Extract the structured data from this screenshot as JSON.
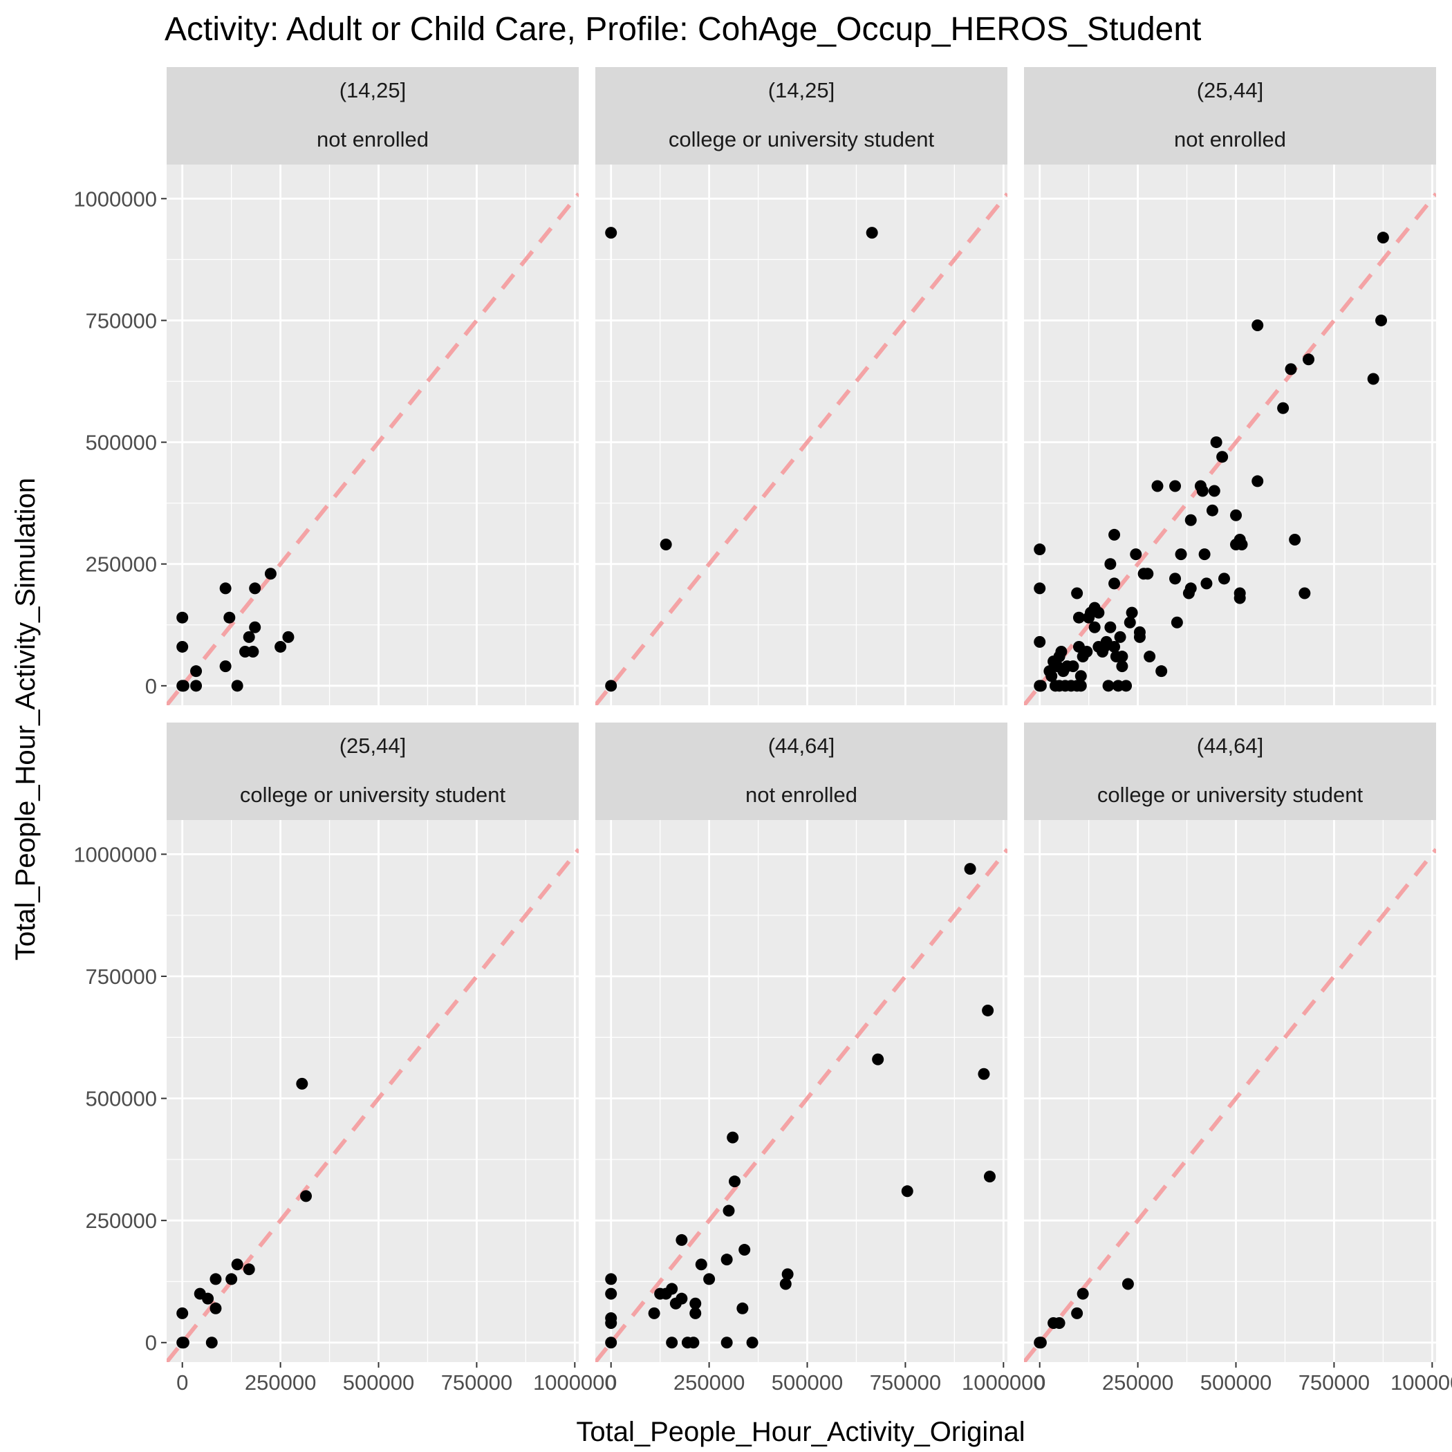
{
  "chart_data": {
    "type": "scatter",
    "title": "Activity: Adult or Child Care, Profile: CohAge_Occup_HEROS_Student",
    "xlabel": "Total_People_Hour_Activity_Original",
    "ylabel": "Total_People_Hour_Activity_Simulation",
    "xlim": [
      -40000,
      1010000
    ],
    "ylim": [
      -40000,
      1070000
    ],
    "x_ticks": [
      0,
      250000,
      500000,
      750000,
      1000000
    ],
    "x_tick_labels": [
      "0",
      "250000",
      "500000",
      "750000",
      "1000000"
    ],
    "y_ticks": [
      0,
      250000,
      500000,
      750000,
      1000000
    ],
    "y_tick_labels": [
      "0",
      "250000",
      "500000",
      "750000",
      "1000000"
    ],
    "reference_line": {
      "style": "dashed",
      "slope": 1,
      "intercept": 0,
      "color": "#f4a3a5"
    },
    "grid": true,
    "colors": {
      "panel_bg": "#ebebeb",
      "strip_bg": "#d9d9d9",
      "grid": "#ffffff",
      "point": "#000000",
      "reference": "#f4a3a5"
    },
    "panels": [
      {
        "strip": [
          "(14,25]",
          "not enrolled"
        ],
        "points": [
          [
            0,
            140000
          ],
          [
            0,
            80000
          ],
          [
            0,
            0
          ],
          [
            3000,
            0
          ],
          [
            35000,
            30000
          ],
          [
            35000,
            0
          ],
          [
            110000,
            200000
          ],
          [
            110000,
            40000
          ],
          [
            120000,
            140000
          ],
          [
            140000,
            0
          ],
          [
            160000,
            70000
          ],
          [
            170000,
            100000
          ],
          [
            180000,
            70000
          ],
          [
            185000,
            200000
          ],
          [
            185000,
            120000
          ],
          [
            225000,
            230000
          ],
          [
            250000,
            80000
          ],
          [
            270000,
            100000
          ]
        ]
      },
      {
        "strip": [
          "(14,25]",
          "college or university student"
        ],
        "points": [
          [
            0,
            930000
          ],
          [
            0,
            0
          ],
          [
            140000,
            290000
          ],
          [
            665000,
            930000
          ]
        ]
      },
      {
        "strip": [
          "(25,44]",
          "not enrolled"
        ],
        "points": [
          [
            0,
            280000
          ],
          [
            0,
            200000
          ],
          [
            0,
            90000
          ],
          [
            0,
            0
          ],
          [
            3000,
            0
          ],
          [
            25000,
            30000
          ],
          [
            30000,
            20000
          ],
          [
            35000,
            50000
          ],
          [
            40000,
            0
          ],
          [
            45000,
            40000
          ],
          [
            50000,
            60000
          ],
          [
            50000,
            0
          ],
          [
            55000,
            70000
          ],
          [
            60000,
            30000
          ],
          [
            65000,
            0
          ],
          [
            70000,
            40000
          ],
          [
            80000,
            0
          ],
          [
            85000,
            40000
          ],
          [
            95000,
            0
          ],
          [
            95000,
            190000
          ],
          [
            100000,
            140000
          ],
          [
            100000,
            80000
          ],
          [
            105000,
            20000
          ],
          [
            105000,
            0
          ],
          [
            110000,
            60000
          ],
          [
            120000,
            70000
          ],
          [
            125000,
            140000
          ],
          [
            130000,
            150000
          ],
          [
            140000,
            120000
          ],
          [
            140000,
            160000
          ],
          [
            150000,
            80000
          ],
          [
            150000,
            150000
          ],
          [
            160000,
            70000
          ],
          [
            165000,
            80000
          ],
          [
            170000,
            90000
          ],
          [
            175000,
            0
          ],
          [
            180000,
            120000
          ],
          [
            180000,
            250000
          ],
          [
            190000,
            310000
          ],
          [
            190000,
            210000
          ],
          [
            190000,
            80000
          ],
          [
            195000,
            60000
          ],
          [
            200000,
            0
          ],
          [
            205000,
            100000
          ],
          [
            210000,
            40000
          ],
          [
            210000,
            60000
          ],
          [
            220000,
            0
          ],
          [
            230000,
            130000
          ],
          [
            235000,
            150000
          ],
          [
            245000,
            270000
          ],
          [
            255000,
            100000
          ],
          [
            255000,
            110000
          ],
          [
            265000,
            230000
          ],
          [
            275000,
            230000
          ],
          [
            280000,
            60000
          ],
          [
            300000,
            410000
          ],
          [
            310000,
            30000
          ],
          [
            345000,
            410000
          ],
          [
            345000,
            220000
          ],
          [
            350000,
            130000
          ],
          [
            360000,
            270000
          ],
          [
            380000,
            190000
          ],
          [
            385000,
            340000
          ],
          [
            385000,
            200000
          ],
          [
            410000,
            410000
          ],
          [
            415000,
            400000
          ],
          [
            420000,
            270000
          ],
          [
            425000,
            210000
          ],
          [
            440000,
            360000
          ],
          [
            445000,
            400000
          ],
          [
            450000,
            500000
          ],
          [
            465000,
            470000
          ],
          [
            470000,
            220000
          ],
          [
            500000,
            350000
          ],
          [
            500000,
            290000
          ],
          [
            510000,
            190000
          ],
          [
            510000,
            180000
          ],
          [
            510000,
            300000
          ],
          [
            515000,
            290000
          ],
          [
            555000,
            740000
          ],
          [
            555000,
            420000
          ],
          [
            620000,
            570000
          ],
          [
            640000,
            650000
          ],
          [
            650000,
            300000
          ],
          [
            675000,
            190000
          ],
          [
            685000,
            670000
          ],
          [
            850000,
            630000
          ],
          [
            870000,
            750000
          ],
          [
            875000,
            920000
          ]
        ]
      },
      {
        "strip": [
          "(25,44]",
          "college or university student"
        ],
        "points": [
          [
            0,
            60000
          ],
          [
            0,
            0
          ],
          [
            3000,
            0
          ],
          [
            45000,
            100000
          ],
          [
            65000,
            90000
          ],
          [
            75000,
            0
          ],
          [
            85000,
            130000
          ],
          [
            85000,
            70000
          ],
          [
            125000,
            130000
          ],
          [
            140000,
            160000
          ],
          [
            170000,
            150000
          ],
          [
            305000,
            530000
          ],
          [
            315000,
            300000
          ]
        ]
      },
      {
        "strip": [
          "(44,64]",
          "not enrolled"
        ],
        "points": [
          [
            0,
            130000
          ],
          [
            0,
            100000
          ],
          [
            0,
            50000
          ],
          [
            0,
            40000
          ],
          [
            0,
            0
          ],
          [
            110000,
            60000
          ],
          [
            125000,
            100000
          ],
          [
            140000,
            100000
          ],
          [
            155000,
            110000
          ],
          [
            155000,
            0
          ],
          [
            165000,
            80000
          ],
          [
            180000,
            90000
          ],
          [
            180000,
            210000
          ],
          [
            195000,
            0
          ],
          [
            210000,
            0
          ],
          [
            215000,
            80000
          ],
          [
            215000,
            60000
          ],
          [
            230000,
            160000
          ],
          [
            250000,
            130000
          ],
          [
            295000,
            170000
          ],
          [
            295000,
            0
          ],
          [
            300000,
            270000
          ],
          [
            310000,
            420000
          ],
          [
            315000,
            330000
          ],
          [
            335000,
            70000
          ],
          [
            340000,
            190000
          ],
          [
            360000,
            0
          ],
          [
            445000,
            120000
          ],
          [
            450000,
            140000
          ],
          [
            680000,
            580000
          ],
          [
            755000,
            310000
          ],
          [
            915000,
            970000
          ],
          [
            950000,
            550000
          ],
          [
            960000,
            680000
          ],
          [
            965000,
            340000
          ]
        ]
      },
      {
        "strip": [
          "(44,64]",
          "college or university student"
        ],
        "points": [
          [
            0,
            0
          ],
          [
            3000,
            0
          ],
          [
            35000,
            40000
          ],
          [
            50000,
            40000
          ],
          [
            95000,
            60000
          ],
          [
            110000,
            100000
          ],
          [
            225000,
            120000
          ]
        ]
      }
    ]
  }
}
